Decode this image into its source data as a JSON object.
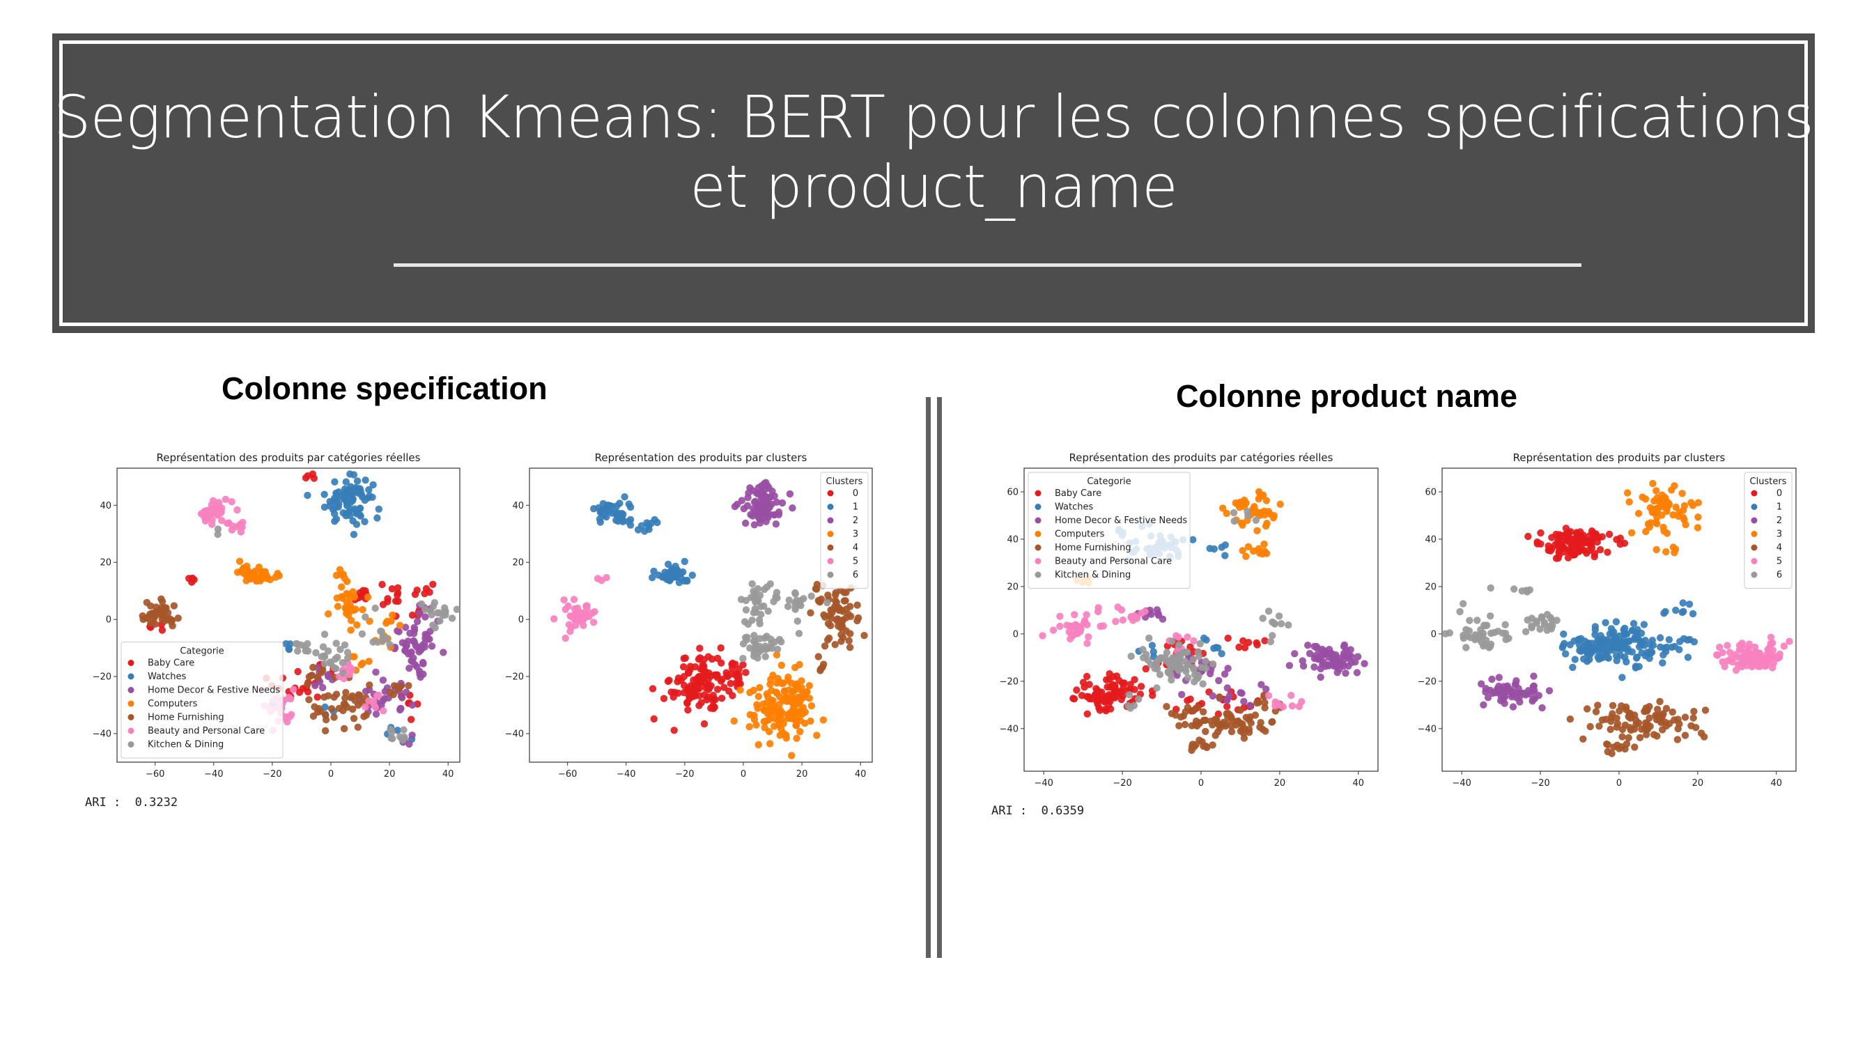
{
  "slide": {
    "title_line1": "Segmentation Kmeans: BERT pour les colonnes specifications",
    "title_line2": "et product_name"
  },
  "sections": {
    "left_heading": "Colonne specification",
    "right_heading": "Colonne product name"
  },
  "ari": {
    "left": "ARI :  0.3232",
    "right": "ARI :  0.6359"
  },
  "colors": {
    "banner_bg": "#4d4d4d",
    "Baby Care": "#e41a1c",
    "Watches": "#377eb8",
    "Home Decor & Festive Needs": "#984ea3",
    "Computers": "#ff7f00",
    "Home Furnishing": "#a65628",
    "Beauty and Personal Care": "#f781bf",
    "Kitchen & Dining": "#999999",
    "cluster_palette": [
      "#e41a1c",
      "#377eb8",
      "#984ea3",
      "#ff7f00",
      "#a65628",
      "#f781bf",
      "#999999"
    ]
  },
  "chart_data": [
    {
      "id": "spec-categories",
      "type": "scatter",
      "title": "Représentation des produits par catégories réelles",
      "xlabel": "",
      "ylabel": "",
      "xlim": [
        -73,
        44
      ],
      "ylim": [
        -50,
        53
      ],
      "xticks": [
        -60,
        -40,
        -20,
        0,
        20,
        40
      ],
      "yticks": [
        -40,
        -20,
        0,
        20,
        40
      ],
      "grid": false,
      "legend": {
        "title": "Categorie",
        "placement": "lower-left"
      },
      "series": [
        {
          "name": "Baby Care",
          "blobs": [
            [
              -6,
              50,
              1.5,
              1.5,
              4
            ],
            [
              -48,
              14,
              1.2,
              1,
              4
            ],
            [
              -60,
              -2,
              2,
              1.5,
              5
            ],
            [
              -16,
              -22,
              3,
              3,
              8
            ],
            [
              -8,
              -24,
              3,
              3,
              8
            ],
            [
              12,
              9,
              4,
              3,
              10
            ],
            [
              22,
              8,
              5,
              3,
              10
            ],
            [
              33,
              10,
              3,
              2,
              6
            ],
            [
              27,
              -30,
              3,
              3,
              6
            ],
            [
              -3,
              -16,
              3,
              3,
              6
            ],
            [
              30,
              2,
              2,
              2,
              4
            ]
          ]
        },
        {
          "name": "Watches",
          "blobs": [
            [
              6,
              42,
              5,
              5,
              80
            ],
            [
              -15,
              -10,
              2,
              1,
              4
            ],
            [
              -20,
              -30,
              1,
              1,
              2
            ],
            [
              22,
              -40,
              2,
              2,
              4
            ],
            [
              25,
              -42,
              2,
              1,
              3
            ],
            [
              -2,
              -32,
              2,
              2,
              3
            ]
          ]
        },
        {
          "name": "Home Decor & Festive Needs",
          "blobs": [
            [
              30,
              -10,
              5,
              5,
              50
            ],
            [
              18,
              -28,
              6,
              4,
              30
            ],
            [
              32,
              2,
              3,
              2,
              6
            ],
            [
              -3,
              -20,
              3,
              3,
              10
            ],
            [
              25,
              -44,
              2,
              2,
              4
            ]
          ]
        },
        {
          "name": "Computers",
          "blobs": [
            [
              -25,
              16,
              4,
              2,
              45
            ],
            [
              6,
              8,
              3,
              6,
              35
            ],
            [
              20,
              -5,
              3,
              4,
              10
            ],
            [
              10,
              -15,
              2,
              2,
              6
            ]
          ]
        },
        {
          "name": "Home Furnishing",
          "blobs": [
            [
              -59,
              1,
              4,
              3,
              40
            ],
            [
              5,
              -30,
              8,
              5,
              40
            ],
            [
              -5,
              -20,
              3,
              3,
              8
            ],
            [
              20,
              -25,
              3,
              2,
              6
            ]
          ]
        },
        {
          "name": "Beauty and Personal Care",
          "blobs": [
            [
              -40,
              38,
              4,
              3,
              35
            ],
            [
              -32,
              33,
              2,
              2,
              10
            ],
            [
              -17,
              -30,
              3,
              5,
              25
            ],
            [
              5,
              -18,
              3,
              2,
              10
            ],
            [
              15,
              -28,
              3,
              3,
              8
            ]
          ]
        },
        {
          "name": "Kitchen & Dining",
          "blobs": [
            [
              -38,
              30,
              1,
              1,
              2
            ],
            [
              35,
              3,
              6,
              3,
              20
            ],
            [
              0,
              -12,
              6,
              4,
              25
            ],
            [
              17,
              -5,
              4,
              4,
              12
            ],
            [
              22,
              -40,
              3,
              2,
              8
            ],
            [
              -12,
              -10,
              2,
              2,
              4
            ]
          ]
        }
      ]
    },
    {
      "id": "spec-clusters",
      "type": "scatter",
      "title": "Représentation des produits par clusters",
      "xlabel": "",
      "ylabel": "",
      "xlim": [
        -73,
        44
      ],
      "ylim": [
        -50,
        53
      ],
      "xticks": [
        -60,
        -40,
        -20,
        0,
        20,
        40
      ],
      "yticks": [
        -40,
        -20,
        0,
        20,
        40
      ],
      "grid": false,
      "legend": {
        "title": "Clusters",
        "placement": "upper-right"
      },
      "series": [
        {
          "name": "0",
          "blobs": [
            [
              -15,
              -22,
              6,
              7,
              110
            ],
            [
              -3,
              -20,
              3,
              4,
              20
            ]
          ]
        },
        {
          "name": "1",
          "blobs": [
            [
              -44,
              37,
              4,
              3,
              40
            ],
            [
              -33,
              33,
              2,
              2,
              10
            ],
            [
              -24,
              16,
              4,
              2,
              40
            ]
          ]
        },
        {
          "name": "2",
          "blobs": [
            [
              6,
              40,
              5,
              5,
              80
            ]
          ]
        },
        {
          "name": "3",
          "blobs": [
            [
              14,
              -30,
              7,
              7,
              140
            ]
          ]
        },
        {
          "name": "4",
          "blobs": [
            [
              31,
              2,
              5,
              7,
              70
            ],
            [
              25,
              -15,
              2,
              2,
              5
            ]
          ]
        },
        {
          "name": "5",
          "blobs": [
            [
              -57,
              1,
              4,
              3,
              40
            ],
            [
              -48,
              14,
              1,
              1,
              3
            ]
          ]
        },
        {
          "name": "6",
          "blobs": [
            [
              4,
              5,
              3,
              5,
              30
            ],
            [
              6,
              -10,
              6,
              3,
              35
            ],
            [
              18,
              6,
              5,
              3,
              20
            ]
          ]
        }
      ]
    },
    {
      "id": "name-categories",
      "type": "scatter",
      "title": "Représentation des produits par catégories réelles",
      "xlabel": "",
      "ylabel": "",
      "xlim": [
        -45,
        45
      ],
      "ylim": [
        -58,
        70
      ],
      "xticks": [
        -40,
        -20,
        0,
        20,
        40
      ],
      "yticks": [
        -40,
        -20,
        0,
        20,
        40,
        60
      ],
      "grid": false,
      "legend": {
        "title": "Categorie",
        "placement": "upper-left"
      },
      "series": [
        {
          "name": "Baby Care",
          "blobs": [
            [
              -23,
              -25,
              6,
              5,
              90
            ],
            [
              -5,
              -10,
              4,
              5,
              20
            ],
            [
              5,
              -30,
              6,
              4,
              20
            ],
            [
              12,
              -5,
              3,
              3,
              8
            ]
          ]
        },
        {
          "name": "Watches",
          "blobs": [
            [
              -12,
              38,
              8,
              4,
              40
            ],
            [
              3,
              36,
              2,
              2,
              5
            ],
            [
              -13,
              -8,
              2,
              2,
              4
            ],
            [
              5,
              -5,
              3,
              3,
              6
            ]
          ]
        },
        {
          "name": "Home Decor & Festive Needs",
          "blobs": [
            [
              33,
              -11,
              5,
              4,
              70
            ],
            [
              0,
              -15,
              6,
              4,
              20
            ],
            [
              -12,
              8,
              3,
              2,
              10
            ],
            [
              10,
              -25,
              4,
              4,
              12
            ]
          ]
        },
        {
          "name": "Computers",
          "blobs": [
            [
              13,
              52,
              4,
              5,
              40
            ],
            [
              14,
              35,
              3,
              2,
              10
            ],
            [
              -30,
              22,
              2,
              2,
              5
            ]
          ]
        },
        {
          "name": "Home Furnishing",
          "blobs": [
            [
              5,
              -37,
              8,
              4,
              70
            ],
            [
              0,
              -48,
              3,
              1.5,
              10
            ],
            [
              15,
              -30,
              4,
              4,
              10
            ]
          ]
        },
        {
          "name": "Beauty and Personal Care",
          "blobs": [
            [
              -32,
              2,
              4,
              4,
              30
            ],
            [
              -20,
              8,
              4,
              3,
              15
            ],
            [
              20,
              -30,
              3,
              3,
              10
            ],
            [
              -5,
              -5,
              3,
              3,
              8
            ]
          ]
        },
        {
          "name": "Kitchen & Dining",
          "blobs": [
            [
              -7,
              -12,
              6,
              5,
              70
            ],
            [
              18,
              5,
              3,
              3,
              10
            ],
            [
              -18,
              -30,
              3,
              3,
              5
            ],
            [
              10,
              50,
              2,
              3,
              5
            ]
          ]
        }
      ]
    },
    {
      "id": "name-clusters",
      "type": "scatter",
      "title": "Représentation des produits par clusters",
      "xlabel": "",
      "ylabel": "",
      "xlim": [
        -45,
        45
      ],
      "ylim": [
        -58,
        70
      ],
      "xticks": [
        -40,
        -20,
        0,
        20,
        40
      ],
      "yticks": [
        -40,
        -20,
        0,
        20,
        40,
        60
      ],
      "grid": false,
      "legend": {
        "title": "Clusters",
        "placement": "upper-right"
      },
      "series": [
        {
          "name": "0",
          "blobs": [
            [
              -12,
              38,
              6,
              4,
              110
            ]
          ]
        },
        {
          "name": "1",
          "blobs": [
            [
              0,
              -5,
              9,
              5,
              160
            ],
            [
              15,
              10,
              3,
              2,
              8
            ]
          ]
        },
        {
          "name": "2",
          "blobs": [
            [
              -27,
              -25,
              5,
              4,
              60
            ]
          ]
        },
        {
          "name": "3",
          "blobs": [
            [
              12,
              52,
              5,
              6,
              60
            ],
            [
              13,
              35,
              2,
              1,
              5
            ]
          ]
        },
        {
          "name": "4",
          "blobs": [
            [
              5,
              -37,
              9,
              5,
              90
            ],
            [
              0,
              -48,
              3,
              1.5,
              10
            ]
          ]
        },
        {
          "name": "5",
          "blobs": [
            [
              34,
              -10,
              5,
              4,
              90
            ]
          ]
        },
        {
          "name": "6",
          "blobs": [
            [
              -36,
              0,
              5,
              5,
              40
            ],
            [
              -20,
              5,
              3,
              3,
              20
            ],
            [
              -25,
              20,
              3,
              2,
              6
            ]
          ]
        }
      ]
    }
  ]
}
